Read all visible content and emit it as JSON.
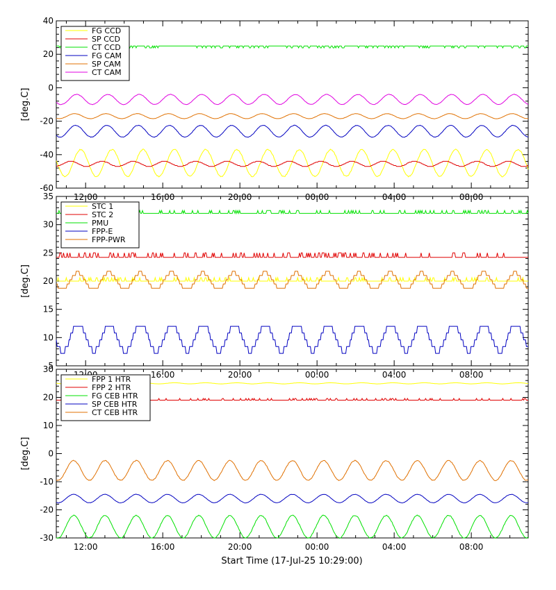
{
  "xlabel": "Start Time (17-Jul-25 10:29:00)",
  "x_tick_labels": [
    "12:00",
    "16:00",
    "20:00",
    "00:00",
    "04:00",
    "08:00"
  ],
  "x_range_hours": [
    10.48,
    34.95
  ],
  "chart_data": [
    {
      "type": "line",
      "ylabel": "[deg.C]",
      "ylim": [
        -60,
        40
      ],
      "yticks": [
        -60,
        -40,
        -20,
        0,
        20,
        40
      ],
      "legend": "top-left",
      "series": [
        {
          "name": "FG CCD",
          "color": "#ffff00",
          "base": -45,
          "amp": 8,
          "period": 1.62,
          "phase": 0.0,
          "step": 0,
          "spikes": 0
        },
        {
          "name": "SP CCD",
          "color": "#e00000",
          "base": -45.5,
          "amp": 1.5,
          "period": 1.62,
          "phase": 2.0,
          "step": 0.5,
          "spikes": 0
        },
        {
          "name": "CT CCD",
          "color": "#00e000",
          "base": 25,
          "amp": 0,
          "period": 1.62,
          "phase": 0,
          "step": 0,
          "spikes": -1.2
        },
        {
          "name": "FG CAM",
          "color": "#0000c0",
          "base": -26,
          "amp": 3.5,
          "period": 1.62,
          "phase": 1.0,
          "step": 0,
          "spikes": 0
        },
        {
          "name": "SP CAM",
          "color": "#e07000",
          "base": -17,
          "amp": 1.5,
          "period": 1.62,
          "phase": 1.2,
          "step": 0,
          "spikes": 0
        },
        {
          "name": "CT CAM",
          "color": "#e000e0",
          "base": -7,
          "amp": 3,
          "period": 1.62,
          "phase": 0.8,
          "step": 0,
          "spikes": 0
        }
      ]
    },
    {
      "type": "line",
      "ylabel": "[deg.C]",
      "ylim": [
        5,
        35
      ],
      "yticks": [
        5,
        10,
        15,
        20,
        25,
        30,
        35
      ],
      "legend": "top-left",
      "series": [
        {
          "name": "STC 1",
          "color": "#ffff00",
          "base": 20,
          "amp": 0,
          "period": 1.62,
          "phase": 0,
          "step": 0,
          "spikes": 0.6
        },
        {
          "name": "STC 2",
          "color": "#e00000",
          "base": 24.2,
          "amp": 0,
          "period": 1.62,
          "phase": 0,
          "step": 0,
          "spikes": 0.8
        },
        {
          "name": "PMU",
          "color": "#00e000",
          "base": 32,
          "amp": 0,
          "period": 1.62,
          "phase": 0,
          "step": 0,
          "spikes": 0.5
        },
        {
          "name": "FPP-E",
          "color": "#0000c0",
          "base": 10,
          "amp": 2.4,
          "period": 1.62,
          "phase": 0.5,
          "step": 1.2,
          "spikes": 0
        },
        {
          "name": "FPP-PWR",
          "color": "#e07000",
          "base": 20,
          "amp": 1.5,
          "period": 1.62,
          "phase": 0.6,
          "step": 0.75,
          "spikes": 0
        }
      ]
    },
    {
      "type": "line",
      "ylabel": "[deg.C]",
      "ylim": [
        -30,
        30
      ],
      "yticks": [
        -30,
        -20,
        -10,
        0,
        10,
        20,
        30
      ],
      "legend": "top-left",
      "series": [
        {
          "name": "FPP 1 HTR",
          "color": "#ffff00",
          "base": 25,
          "amp": 0.2,
          "period": 1.62,
          "phase": 0,
          "step": 0,
          "spikes": 0
        },
        {
          "name": "FPP 2 HTR",
          "color": "#e00000",
          "base": 19,
          "amp": 0,
          "period": 1.62,
          "phase": 0,
          "step": 0,
          "spikes": 0.6
        },
        {
          "name": "FG CEB HTR",
          "color": "#00e000",
          "base": -26,
          "amp": 4,
          "period": 1.62,
          "phase": 1.4,
          "step": 0,
          "spikes": 0
        },
        {
          "name": "SP CEB HTR",
          "color": "#0000c0",
          "base": -16,
          "amp": 1.5,
          "period": 1.62,
          "phase": 1.4,
          "step": 0,
          "spikes": 0
        },
        {
          "name": "CT CEB HTR",
          "color": "#e07000",
          "base": -6,
          "amp": 3.5,
          "period": 1.62,
          "phase": 1.4,
          "step": 0,
          "spikes": 0
        }
      ]
    }
  ]
}
